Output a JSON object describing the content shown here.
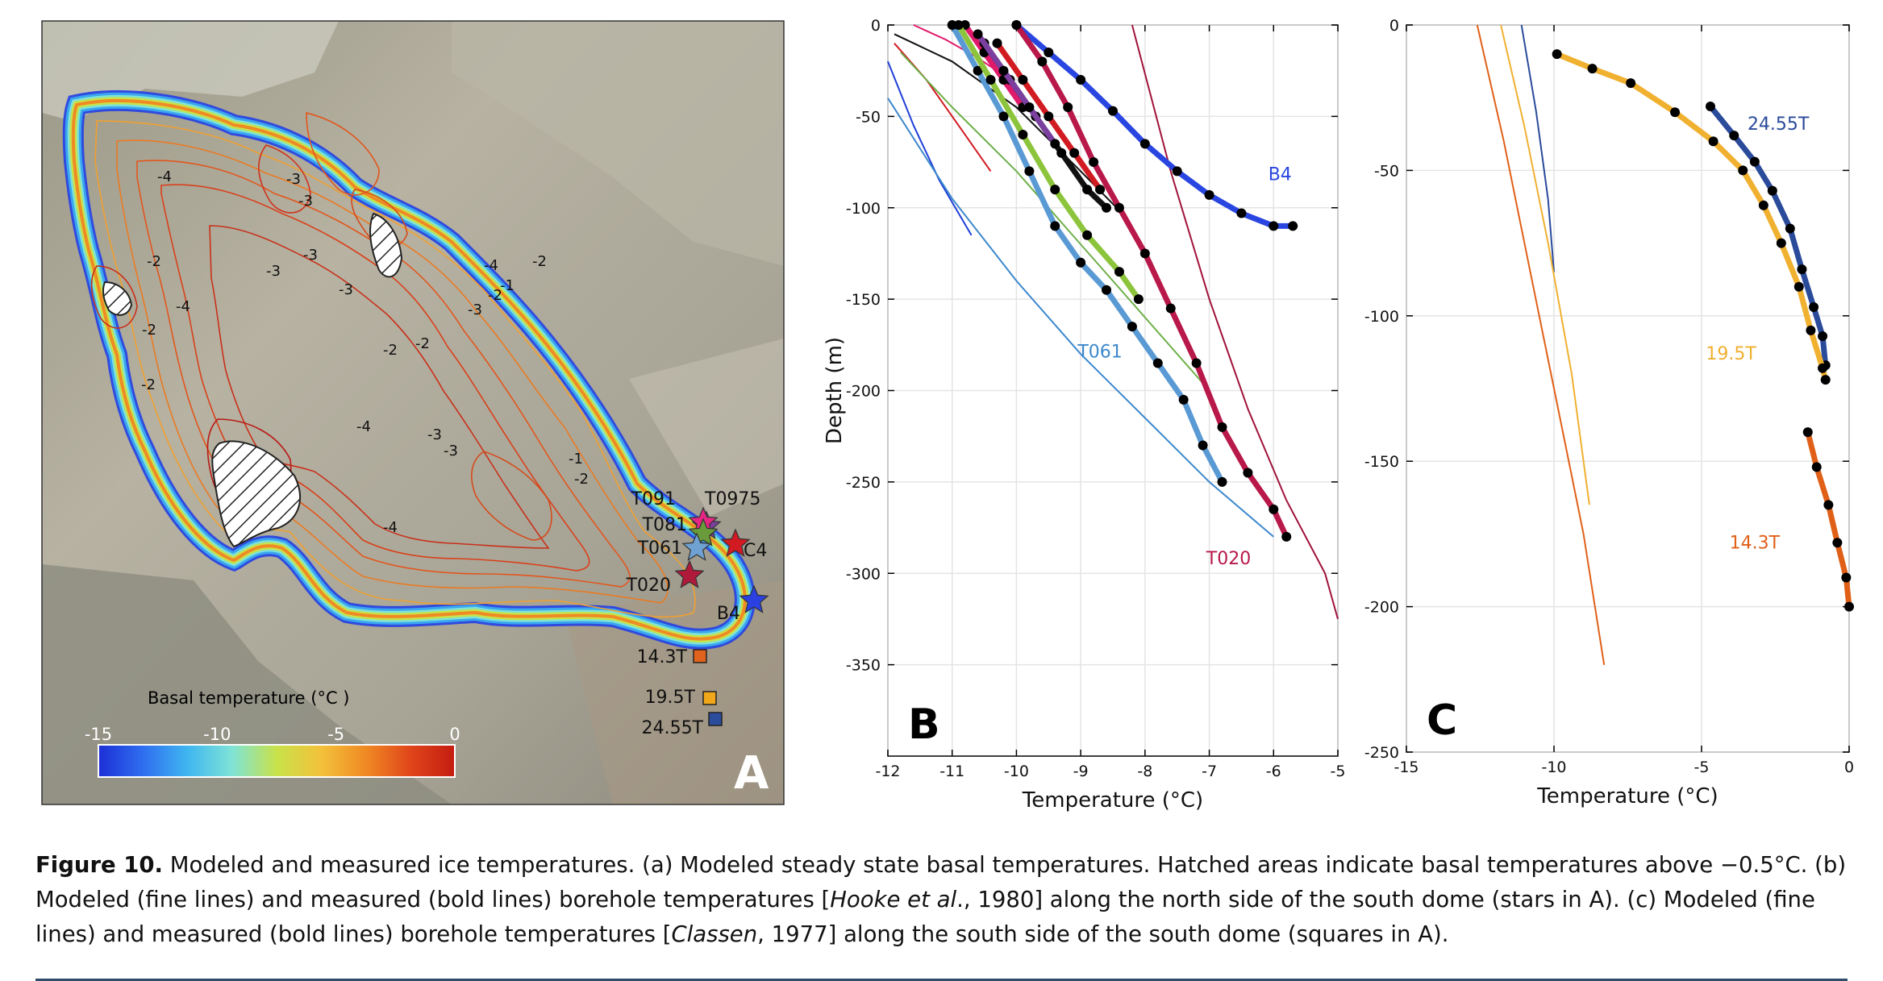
{
  "figure": {
    "number_label": "Figure 10.",
    "caption_parts": [
      {
        "text": " Modeled and measured ice temperatures. (a) Modeled steady state basal temperatures. Hatched areas indicate basal temperatures above −0.5°C. (b) Modeled (fine lines) and measured (bold lines) borehole temperatures [",
        "style": "normal"
      },
      {
        "text": "Hooke et al",
        "style": "italic"
      },
      {
        "text": "., 1980] along the north side of the south dome (stars in A). (c) Modeled (fine lines) and measured (bold lines) borehole temperatures [",
        "style": "normal"
      },
      {
        "text": "Classen",
        "style": "italic"
      },
      {
        "text": ", 1977] along the south side of the south dome (squares in A).",
        "style": "normal"
      }
    ]
  },
  "panel_a": {
    "letter": "A",
    "colorbar_title": "Basal temperature  (°C )",
    "colorbar_ticks": [
      "-15",
      "-10",
      "-5",
      "0"
    ],
    "colorbar_stops": [
      "#1d2fd6",
      "#2f6ef0",
      "#3fb6f0",
      "#7fe3d6",
      "#c8e24a",
      "#f3c13a",
      "#f08a24",
      "#e0461a",
      "#c41b10"
    ],
    "contour_labels": [
      "-4",
      "-3",
      "-3",
      "-2",
      "-4",
      "-2",
      "-2",
      "-3",
      "-3",
      "-2",
      "-1",
      "-2",
      "-4",
      "-3",
      "-3",
      "-2",
      "-4",
      "-3",
      "-4",
      "-3",
      "-2",
      "-1",
      "-2"
    ],
    "site_labels": {
      "T091": "T091",
      "T097": "T0975",
      "T081": "T081",
      "T061": "T061",
      "C4": "C4",
      "T020": "T020",
      "B4": "B4",
      "s143": "14.3T",
      "s195": "19.5T",
      "s2455": "24.55T"
    },
    "site_colors": {
      "T091": "#7b3fa0",
      "T097": "#e52682",
      "T081": "#6a9b3a",
      "T061": "#6fa1d2",
      "C4": "#d11a22",
      "T020": "#b01a3a",
      "B4": "#2a40e0",
      "s143": "#e0621c",
      "s195": "#f0a81a",
      "s2455": "#2b4d9c"
    }
  },
  "panel_b": {
    "letter": "B",
    "xlabel": "Temperature (°C)",
    "ylabel": "Depth (m)",
    "xlim": [
      -12,
      -5
    ],
    "ylim": [
      -400,
      0
    ],
    "xticks": [
      "-12",
      "-11",
      "-10",
      "-9",
      "-8",
      "-7",
      "-6",
      "-5"
    ],
    "yticks": [
      "0",
      "-50",
      "-100",
      "-150",
      "-200",
      "-250",
      "-300",
      "-350"
    ],
    "chart_data": {
      "type": "line",
      "measured": [
        {
          "name": "B4",
          "color": "#2a46e0",
          "x": [
            -10.0,
            -9.5,
            -9.0,
            -8.5,
            -8.0,
            -7.5,
            -7.0,
            -6.5,
            -6.0,
            -5.7
          ],
          "y": [
            0,
            -15,
            -30,
            -47,
            -65,
            -80,
            -93,
            -103,
            -110,
            -110
          ]
        },
        {
          "name": "T061",
          "color": "#5a9ad4",
          "x": [
            -11.0,
            -10.6,
            -10.2,
            -9.8,
            -9.4,
            -9.0,
            -8.6,
            -8.2,
            -7.8,
            -7.4,
            -7.1,
            -6.8
          ],
          "y": [
            0,
            -25,
            -50,
            -80,
            -110,
            -130,
            -145,
            -165,
            -185,
            -205,
            -230,
            -250
          ]
        },
        {
          "name": "T020",
          "color": "#b8184a",
          "x": [
            -10.0,
            -9.6,
            -9.2,
            -8.8,
            -8.4,
            -8.0,
            -7.6,
            -7.2,
            -6.8,
            -6.4,
            -6.0,
            -5.8
          ],
          "y": [
            0,
            -20,
            -45,
            -75,
            -100,
            -125,
            -155,
            -185,
            -220,
            -245,
            -265,
            -280
          ]
        },
        {
          "name": "",
          "color": "#e01a6a",
          "x": [
            -10.8,
            -10.5,
            -10.2,
            -9.9
          ],
          "y": [
            0,
            -15,
            -30,
            -45
          ]
        },
        {
          "name": "",
          "color": "#d11a22",
          "x": [
            -10.3,
            -9.9,
            -9.5,
            -9.1,
            -8.7
          ],
          "y": [
            -10,
            -30,
            -50,
            -70,
            -90
          ]
        },
        {
          "name": "",
          "color": "#111111",
          "x": [
            -10.5,
            -10.1,
            -9.7,
            -9.3,
            -8.9,
            -8.6
          ],
          "y": [
            -10,
            -30,
            -50,
            -70,
            -90,
            -100
          ]
        },
        {
          "name": "",
          "color": "#8cc43c",
          "x": [
            -10.9,
            -10.4,
            -9.9,
            -9.4,
            -8.9,
            -8.4,
            -8.1
          ],
          "y": [
            0,
            -30,
            -60,
            -90,
            -115,
            -135,
            -150
          ]
        },
        {
          "name": "",
          "color": "#7b3fa0",
          "x": [
            -10.6,
            -10.2,
            -9.8,
            -9.4
          ],
          "y": [
            -5,
            -25,
            -45,
            -65
          ]
        }
      ],
      "modeled": [
        {
          "name": "",
          "color": "#1f3fd8",
          "x": [
            -12.0,
            -11.6,
            -11.2,
            -10.7
          ],
          "y": [
            -20,
            -55,
            -85,
            -115
          ]
        },
        {
          "name": "",
          "color": "#3c88cc",
          "x": [
            -12.0,
            -11.0,
            -10.0,
            -9.0,
            -8.0,
            -7.0,
            -6.0
          ],
          "y": [
            -40,
            -95,
            -140,
            -180,
            -215,
            -250,
            -280
          ]
        },
        {
          "name": "",
          "color": "#d11a22",
          "x": [
            -11.9,
            -11.4,
            -10.9,
            -10.4
          ],
          "y": [
            -10,
            -30,
            -55,
            -80
          ]
        },
        {
          "name": "",
          "color": "#6fb04a",
          "x": [
            -11.8,
            -11.0,
            -10.0,
            -9.0,
            -8.0,
            -7.0
          ],
          "y": [
            -15,
            -45,
            -80,
            -120,
            -160,
            -200
          ]
        },
        {
          "name": "",
          "color": "#111111",
          "x": [
            -11.9,
            -11.0,
            -10.0,
            -9.0,
            -8.3
          ],
          "y": [
            -5,
            -20,
            -45,
            -80,
            -105
          ]
        },
        {
          "name": "",
          "color": "#e01a6a",
          "x": [
            -11.6,
            -11.1,
            -10.6,
            -10.1
          ],
          "y": [
            0,
            -8,
            -18,
            -30
          ]
        },
        {
          "name": "",
          "color": "#a0123a",
          "x": [
            -8.2,
            -7.6,
            -7.0,
            -6.4,
            -5.8,
            -5.2,
            -5.0
          ],
          "y": [
            0,
            -80,
            -150,
            -210,
            -260,
            -300,
            -325
          ]
        }
      ],
      "series_labels": [
        {
          "text": "B4",
          "color": "#2a46e0",
          "x": -5.9,
          "y": -85
        },
        {
          "text": "T061",
          "color": "#3c88cc",
          "x": -8.7,
          "y": -182
        },
        {
          "text": "T020",
          "color": "#b8184a",
          "x": -6.7,
          "y": -295
        }
      ]
    }
  },
  "panel_c": {
    "letter": "C",
    "xlabel": "Temperature (°C)",
    "xlim": [
      -15,
      0
    ],
    "ylim": [
      -250,
      0
    ],
    "xticks": [
      "-15",
      "-10",
      "-5",
      "0"
    ],
    "yticks": [
      "0",
      "-50",
      "-100",
      "-150",
      "-200",
      "-250"
    ],
    "chart_data": {
      "type": "line",
      "measured": [
        {
          "name": "24.55T",
          "color": "#2a4a9a",
          "x": [
            -4.7,
            -3.9,
            -3.2,
            -2.6,
            -2.0,
            -1.6,
            -1.2,
            -0.9,
            -0.8
          ],
          "y": [
            -28,
            -38,
            -47,
            -57,
            -70,
            -84,
            -97,
            -107,
            -117
          ]
        },
        {
          "name": "19.5T",
          "color": "#f0b030",
          "x": [
            -9.9,
            -8.7,
            -7.4,
            -5.9,
            -4.6,
            -3.6,
            -2.9,
            -2.3,
            -1.7,
            -1.3,
            -0.9,
            -0.8
          ],
          "y": [
            -10,
            -15,
            -20,
            -30,
            -40,
            -50,
            -62,
            -75,
            -90,
            -105,
            -118,
            -122
          ]
        },
        {
          "name": "14.3T",
          "color": "#e06018",
          "x": [
            -1.4,
            -1.1,
            -0.7,
            -0.4,
            -0.1,
            0.0
          ],
          "y": [
            -140,
            -152,
            -165,
            -178,
            -190,
            -200
          ]
        }
      ],
      "modeled": [
        {
          "name": "",
          "color": "#2a4a9a",
          "x": [
            -11.1,
            -10.6,
            -10.2,
            -10.0
          ],
          "y": [
            0,
            -30,
            -60,
            -85
          ]
        },
        {
          "name": "",
          "color": "#f0b030",
          "x": [
            -11.8,
            -11.0,
            -10.2,
            -9.4,
            -8.8
          ],
          "y": [
            0,
            -35,
            -75,
            -120,
            -165
          ]
        },
        {
          "name": "",
          "color": "#e06018",
          "x": [
            -12.6,
            -11.7,
            -10.8,
            -9.9,
            -9.0,
            -8.3
          ],
          "y": [
            0,
            -40,
            -85,
            -130,
            -175,
            -220
          ]
        }
      ],
      "series_labels": [
        {
          "text": "24.55T",
          "color": "#2a4a9a",
          "x": -2.4,
          "y": -36
        },
        {
          "text": "19.5T",
          "color": "#f0b030",
          "x": -4.0,
          "y": -115
        },
        {
          "text": "14.3T",
          "color": "#e06018",
          "x": -3.2,
          "y": -180
        }
      ]
    }
  }
}
